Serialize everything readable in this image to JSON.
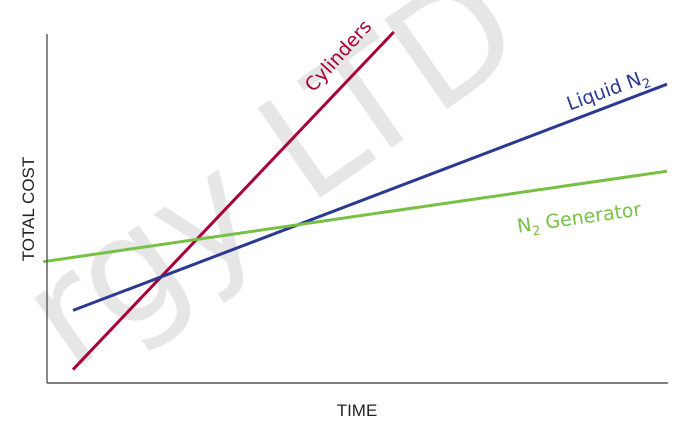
{
  "watermark": {
    "text": "rgy LTD"
  },
  "chart_data": {
    "type": "line",
    "title": "",
    "xlabel": "TIME",
    "ylabel": "TOTAL COST",
    "xlim": [
      0,
      1
    ],
    "ylim": [
      0,
      1
    ],
    "grid": false,
    "series": [
      {
        "name": "Cylinders",
        "label_main": "Cylinders",
        "label_sub": "",
        "label_tail": "",
        "color": "#a8003a",
        "x": [
          0,
          0.54
        ],
        "y": [
          0.03,
          1.0
        ]
      },
      {
        "name": "Liquid N2",
        "label_main": "Liquid N",
        "label_sub": "2",
        "label_tail": "",
        "color": "#2b3990",
        "x": [
          0,
          1.0
        ],
        "y": [
          0.2,
          0.85
        ]
      },
      {
        "name": "N2 Generator",
        "label_main": "N",
        "label_sub": "2",
        "label_tail": " Generator",
        "color": "#76c043",
        "x": [
          -0.05,
          1.0
        ],
        "y": [
          0.34,
          0.6
        ]
      }
    ]
  }
}
